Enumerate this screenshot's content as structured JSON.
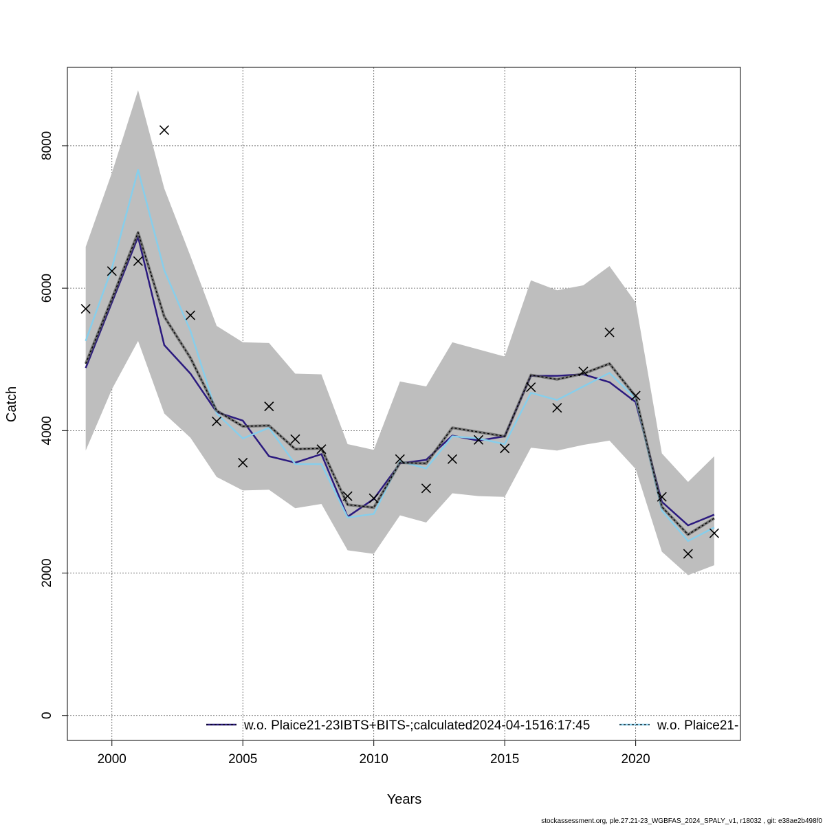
{
  "chart_data": {
    "type": "line",
    "title": "",
    "xlabel": "Years",
    "ylabel": "Catch",
    "xlim": [
      1998.3,
      2024.0
    ],
    "ylim": [
      -350,
      9100
    ],
    "xticks": [
      2000,
      2005,
      2010,
      2015,
      2020
    ],
    "yticks": [
      0,
      2000,
      4000,
      6000,
      8000
    ],
    "grid": true,
    "legend_position": "bottom-right",
    "x": [
      1999,
      2000,
      2001,
      2002,
      2003,
      2004,
      2005,
      2006,
      2007,
      2008,
      2009,
      2010,
      2011,
      2012,
      2013,
      2014,
      2015,
      2016,
      2017,
      2018,
      2019,
      2020,
      2021,
      2022,
      2023
    ],
    "confidence_band": {
      "color": "#bebebe",
      "upper": [
        6580,
        7620,
        8780,
        7400,
        6450,
        5470,
        5240,
        5230,
        4800,
        4790,
        3810,
        3730,
        4690,
        4620,
        5240,
        5140,
        5040,
        6110,
        5970,
        6040,
        6310,
        5800,
        3680,
        3280,
        3640
      ],
      "lower": [
        3720,
        4580,
        5260,
        4240,
        3900,
        3350,
        3160,
        3170,
        2910,
        2970,
        2320,
        2270,
        2810,
        2710,
        3120,
        3080,
        3070,
        3760,
        3720,
        3800,
        3860,
        3460,
        2300,
        1970,
        2110
      ]
    },
    "series": [
      {
        "name": "w.o. Plaice21-23IBTS+BITS-;calculated2024-04-1516:17:45",
        "color": "#2b1a7f",
        "values": [
          4880,
          5800,
          6720,
          5200,
          4800,
          4260,
          4140,
          3640,
          3550,
          3670,
          2790,
          3040,
          3540,
          3590,
          3930,
          3860,
          3920,
          4770,
          4770,
          4790,
          4680,
          4400,
          3000,
          2670,
          2820
        ]
      },
      {
        "name": "w.o. Plaice21-",
        "color": "#87ceeb",
        "values": [
          5260,
          6280,
          7660,
          6250,
          5400,
          4240,
          3890,
          4040,
          3530,
          3530,
          2780,
          2830,
          3570,
          3470,
          3920,
          3890,
          3810,
          4530,
          4430,
          4620,
          4810,
          4450,
          2880,
          2450,
          2640
        ]
      }
    ],
    "reference_line": {
      "color": "#000000",
      "values": [
        4940,
        5850,
        6780,
        5600,
        5020,
        4280,
        4060,
        4070,
        3740,
        3750,
        2960,
        2920,
        3550,
        3540,
        4040,
        3980,
        3920,
        4780,
        4720,
        4800,
        4940,
        4480,
        2930,
        2540,
        2770
      ]
    },
    "observations": {
      "marker": "x",
      "x": [
        1999,
        2000,
        2001,
        2002,
        2003,
        2004,
        2005,
        2006,
        2007,
        2008,
        2009,
        2010,
        2011,
        2012,
        2013,
        2014,
        2015,
        2016,
        2017,
        2018,
        2019,
        2020,
        2021,
        2022,
        2023
      ],
      "values": [
        5710,
        6240,
        6380,
        8220,
        5620,
        4130,
        3550,
        4340,
        3880,
        3740,
        3080,
        3050,
        3600,
        3190,
        3600,
        3870,
        3750,
        4610,
        4320,
        4830,
        5380,
        4490,
        3070,
        2270,
        2560
      ]
    }
  },
  "footer": {
    "text": "stockassessment.org, ple.27.21-23_WGBFAS_2024_SPALY_v1, r18032 , git: e38ae2b498f0"
  }
}
